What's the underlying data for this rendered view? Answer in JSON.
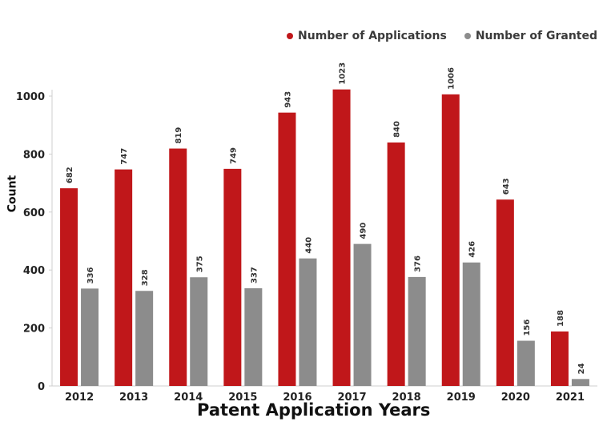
{
  "chart_data": {
    "type": "bar",
    "title": "",
    "xlabel": "Patent Application Years",
    "ylabel": "Count",
    "ylim": [
      0,
      1050
    ],
    "yticks": [
      0,
      200,
      400,
      600,
      800,
      1000
    ],
    "categories": [
      "2012",
      "2013",
      "2014",
      "2015",
      "2016",
      "2017",
      "2018",
      "2019",
      "2020",
      "2021"
    ],
    "series": [
      {
        "name": "Number of Applications",
        "color": "#c0171a",
        "values": [
          682,
          747,
          819,
          749,
          943,
          1023,
          840,
          1006,
          643,
          188
        ]
      },
      {
        "name": "Number of Granted",
        "color": "#8c8c8c",
        "values": [
          336,
          328,
          375,
          337,
          440,
          490,
          376,
          426,
          156,
          24
        ]
      }
    ],
    "legend_position": "top-right",
    "grid": false
  }
}
